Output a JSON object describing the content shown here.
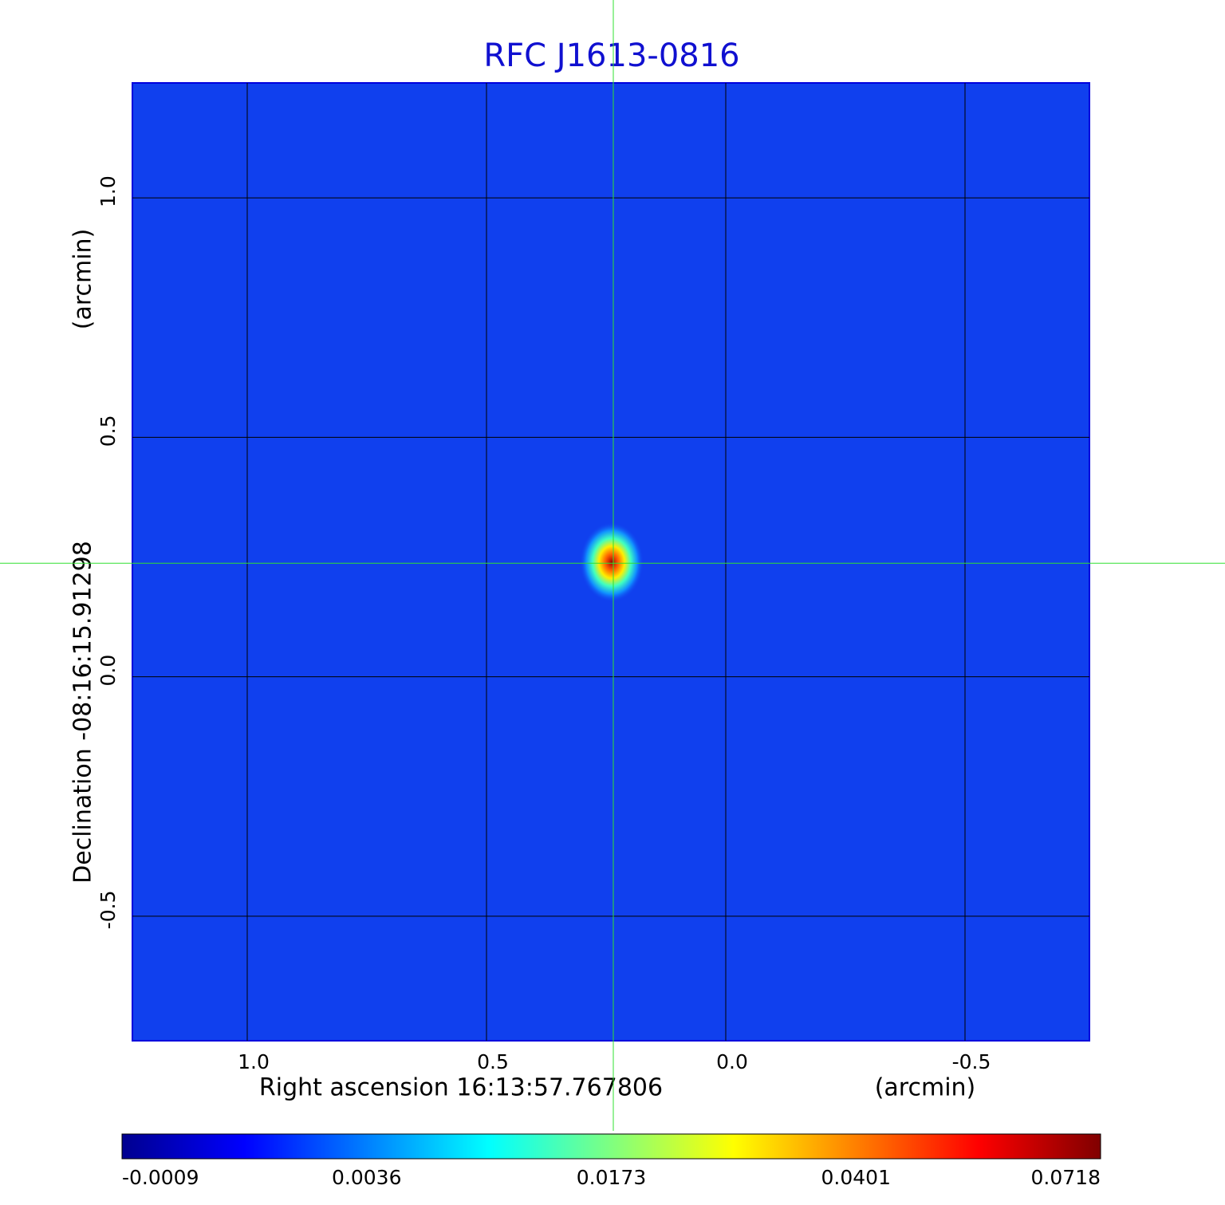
{
  "chart_data": {
    "type": "image",
    "title": "RFC J1613-0816",
    "x_label": "Right ascension  16:13:57.767806",
    "x_unit": "(arcmin)",
    "y_label": "Declination  -08:16:15.91298",
    "y_unit": "(arcmin)",
    "xlim": [
      1.24,
      -0.76
    ],
    "ylim": [
      -0.76,
      1.24
    ],
    "xticks": [
      {
        "value": 1,
        "label": "1.0"
      },
      0.5,
      {
        "value": 0,
        "label": "0.0"
      },
      -0.5
    ],
    "yticks": [
      {
        "value": 1,
        "label": "1.0"
      },
      0.5,
      {
        "value": 0,
        "label": "0.0"
      },
      -0.5
    ],
    "grid": true,
    "crosshair": {
      "x": 0.235,
      "y": 0.237
    },
    "colorbar_ticks": [
      -0.0009,
      0.0036,
      0.0173,
      0.0401,
      0.0718
    ]
  }
}
